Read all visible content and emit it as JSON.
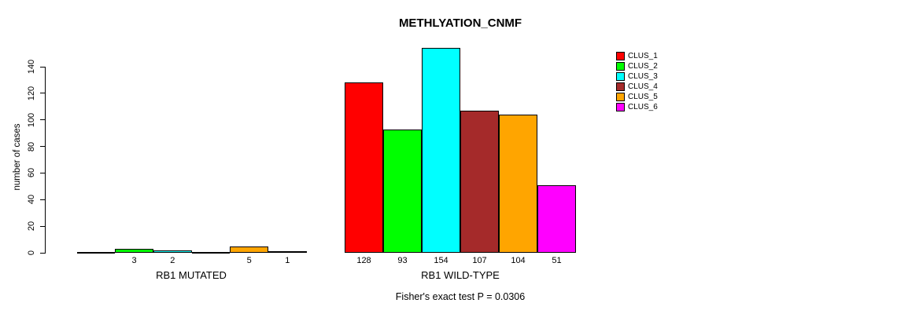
{
  "chart_data": {
    "type": "bar",
    "title": "METHLYATION_CNMF",
    "ylabel": "number of cases",
    "xlabel": "",
    "ylim": [
      0,
      154
    ],
    "yticks": [
      0,
      20,
      40,
      60,
      80,
      100,
      120,
      140
    ],
    "grid": false,
    "legend_position": "right",
    "legend": [
      {
        "label": "CLUS_1",
        "color": "#FF0000"
      },
      {
        "label": "CLUS_2",
        "color": "#00FF00"
      },
      {
        "label": "CLUS_3",
        "color": "#00FFFF"
      },
      {
        "label": "CLUS_4",
        "color": "#A52A2A"
      },
      {
        "label": "CLUS_5",
        "color": "#FFA500"
      },
      {
        "label": "CLUS_6",
        "color": "#FF00FF"
      }
    ],
    "categories": [
      "CLUS_1",
      "CLUS_2",
      "CLUS_3",
      "CLUS_4",
      "CLUS_5",
      "CLUS_6"
    ],
    "groups": [
      {
        "label": "RB1 MUTATED",
        "values": [
          0,
          3,
          2,
          0,
          5,
          1
        ],
        "bar_labels": [
          "",
          "3",
          "2",
          "",
          "5",
          "1"
        ]
      },
      {
        "label": "RB1 WILD-TYPE",
        "values": [
          128,
          93,
          154,
          107,
          104,
          51
        ],
        "bar_labels": [
          "128",
          "93",
          "154",
          "107",
          "104",
          "51"
        ]
      }
    ],
    "annotation": "Fisher's exact test P = 0.0306",
    "bar_border_color": "#000000",
    "background_color": "#FFFFFF"
  }
}
